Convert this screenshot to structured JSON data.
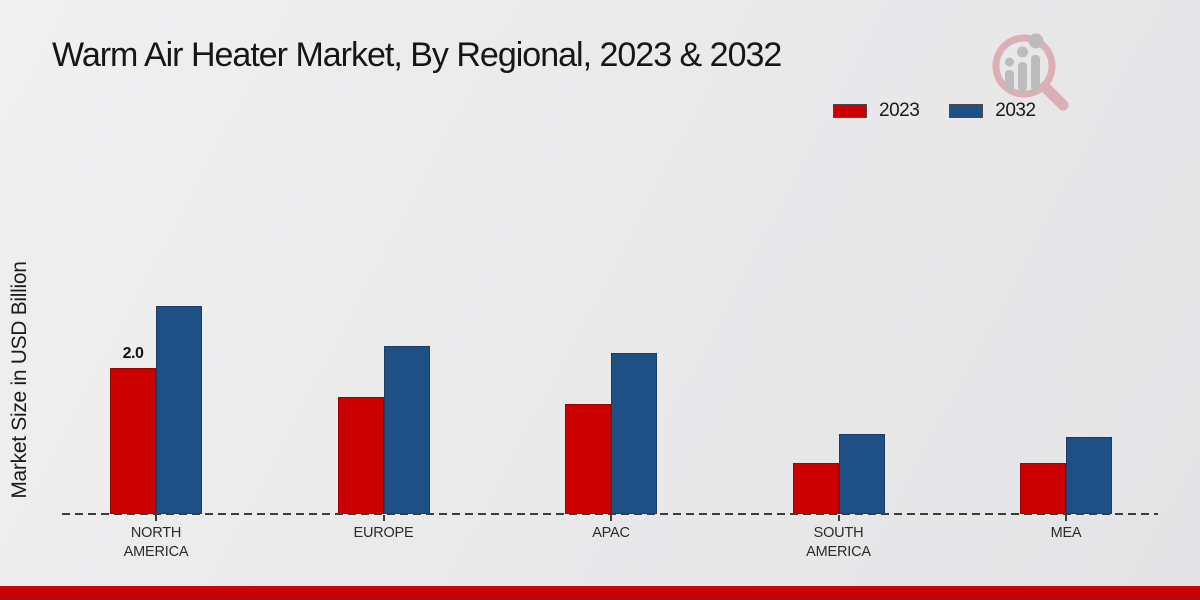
{
  "chart_data": {
    "type": "bar",
    "title": "Warm Air Heater Market, By Regional, 2023 & 2032",
    "xlabel": "",
    "ylabel": "Market Size in USD Billion",
    "categories": [
      "NORTH AMERICA",
      "EUROPE",
      "APAC",
      "SOUTH AMERICA",
      "MEA"
    ],
    "series": [
      {
        "name": "2023",
        "color": "#cc0000",
        "values": [
          2.0,
          1.6,
          1.5,
          0.7,
          0.7
        ]
      },
      {
        "name": "2032",
        "color": "#1f5085",
        "values": [
          2.85,
          2.3,
          2.2,
          1.1,
          1.05
        ]
      }
    ],
    "data_labels": [
      {
        "series_index": 0,
        "category_index": 0,
        "text": "2.0"
      }
    ],
    "ylim": [
      0,
      3.2
    ],
    "grid": false,
    "legend_position": "top-right",
    "baseline_style": "dashed",
    "y_axis_ticks_shown": false
  },
  "colors": {
    "series_2023": "#cc0000",
    "series_2032": "#1f5085",
    "dashed_axis": "#3c3c3c",
    "footer_bar": "#c40202",
    "background": "#eaeaeb",
    "title_text": "#161616"
  },
  "branding": {
    "logo": "magnifier-bar-chart-logo"
  }
}
